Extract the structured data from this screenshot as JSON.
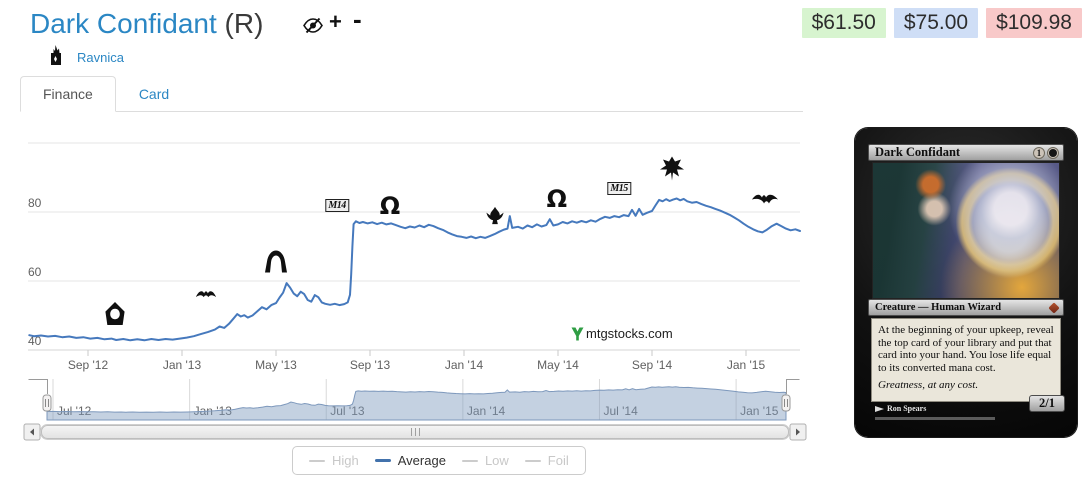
{
  "header": {
    "title": "Dark Confidant",
    "rarity": "(R)",
    "add_label": "+",
    "remove_label": "-",
    "set_name": "Ravnica",
    "prices": [
      {
        "kind": "low",
        "label": "$61.50",
        "bg": "#d7f4cf"
      },
      {
        "kind": "average",
        "label": "$75.00",
        "bg": "#cfdef6"
      },
      {
        "kind": "high",
        "label": "$109.98",
        "bg": "#f8c9c9"
      }
    ]
  },
  "tabs": [
    {
      "label": "Finance",
      "active": true
    },
    {
      "label": "Card",
      "active": false
    }
  ],
  "chart_data": {
    "type": "line",
    "title": "",
    "xlabel": "",
    "ylabel": "",
    "x_unit": "months since Jul 2012",
    "ylim": [
      40,
      100
    ],
    "grid": true,
    "yticks": [
      40,
      60,
      80,
      100
    ],
    "ytick_labels": [
      "40",
      "60",
      "80",
      ""
    ],
    "xticks": [
      {
        "pos": 2,
        "label": "Sep '12"
      },
      {
        "pos": 6,
        "label": "Jan '13"
      },
      {
        "pos": 10,
        "label": "May '13"
      },
      {
        "pos": 14,
        "label": "Sep '13"
      },
      {
        "pos": 18,
        "label": "Jan '14"
      },
      {
        "pos": 22,
        "label": "May '14"
      },
      {
        "pos": 26,
        "label": "Sep '14"
      },
      {
        "pos": 30,
        "label": "Jan '15"
      }
    ],
    "series": [
      {
        "name": "Average",
        "color": "#4679bd",
        "points": [
          [
            -0.5,
            44.3
          ],
          [
            -0.3,
            44.0
          ],
          [
            0,
            44.2
          ],
          [
            0.3,
            43.9
          ],
          [
            0.6,
            44.1
          ],
          [
            0.9,
            43.7
          ],
          [
            1.2,
            43.9
          ],
          [
            1.5,
            43.5
          ],
          [
            1.8,
            43.7
          ],
          [
            2.1,
            43.3
          ],
          [
            2.4,
            43.5
          ],
          [
            2.7,
            43.1
          ],
          [
            3.0,
            43.3
          ],
          [
            3.2,
            42.9
          ],
          [
            3.5,
            43.2
          ],
          [
            3.8,
            42.8
          ],
          [
            4.1,
            43.1
          ],
          [
            4.4,
            42.8
          ],
          [
            4.7,
            43.2
          ],
          [
            5.0,
            42.9
          ],
          [
            5.3,
            43.2
          ],
          [
            5.6,
            43.0
          ],
          [
            5.9,
            43.3
          ],
          [
            6.2,
            43.6
          ],
          [
            6.5,
            44.0
          ],
          [
            6.8,
            44.6
          ],
          [
            7.1,
            45.2
          ],
          [
            7.4,
            45.9
          ],
          [
            7.6,
            46.8
          ],
          [
            7.8,
            46.4
          ],
          [
            8.0,
            47.6
          ],
          [
            8.2,
            49.2
          ],
          [
            8.35,
            50.4
          ],
          [
            8.5,
            49.7
          ],
          [
            8.65,
            50.1
          ],
          [
            8.8,
            49.4
          ],
          [
            9.0,
            50.0
          ],
          [
            9.2,
            51.2
          ],
          [
            9.4,
            52.4
          ],
          [
            9.6,
            51.8
          ],
          [
            9.8,
            53.0
          ],
          [
            10.0,
            53.6
          ],
          [
            10.15,
            55.2
          ],
          [
            10.3,
            56.6
          ],
          [
            10.45,
            59.4
          ],
          [
            10.6,
            58.1
          ],
          [
            10.75,
            56.4
          ],
          [
            10.9,
            55.6
          ],
          [
            11.05,
            56.9
          ],
          [
            11.2,
            56.2
          ],
          [
            11.35,
            54.5
          ],
          [
            11.5,
            54.0
          ],
          [
            11.65,
            55.9
          ],
          [
            11.8,
            55.3
          ],
          [
            11.95,
            53.8
          ],
          [
            12.1,
            53.4
          ],
          [
            12.3,
            53.1
          ],
          [
            12.5,
            53.4
          ],
          [
            12.7,
            53.0
          ],
          [
            12.9,
            53.3
          ],
          [
            13.05,
            53.8
          ],
          [
            13.15,
            56.0
          ],
          [
            13.2,
            62.0
          ],
          [
            13.25,
            70.0
          ],
          [
            13.3,
            76.5
          ],
          [
            13.4,
            77.3
          ],
          [
            13.55,
            76.8
          ],
          [
            13.7,
            77.1
          ],
          [
            13.9,
            76.7
          ],
          [
            14.1,
            77.0
          ],
          [
            14.3,
            76.5
          ],
          [
            14.5,
            76.9
          ],
          [
            14.7,
            76.4
          ],
          [
            14.9,
            76.7
          ],
          [
            15.1,
            76.2
          ],
          [
            15.3,
            75.7
          ],
          [
            15.5,
            75.3
          ],
          [
            15.7,
            75.8
          ],
          [
            15.9,
            75.5
          ],
          [
            16.1,
            76.1
          ],
          [
            16.3,
            75.6
          ],
          [
            16.5,
            76.3
          ],
          [
            16.7,
            75.9
          ],
          [
            16.9,
            75.3
          ],
          [
            17.1,
            74.8
          ],
          [
            17.3,
            74.1
          ],
          [
            17.5,
            73.5
          ],
          [
            17.7,
            73.0
          ],
          [
            17.9,
            72.8
          ],
          [
            18.1,
            72.5
          ],
          [
            18.3,
            72.9
          ],
          [
            18.5,
            72.4
          ],
          [
            18.7,
            72.8
          ],
          [
            18.9,
            72.5
          ],
          [
            19.1,
            73.0
          ],
          [
            19.3,
            73.6
          ],
          [
            19.5,
            74.3
          ],
          [
            19.7,
            74.9
          ],
          [
            19.85,
            75.2
          ],
          [
            19.95,
            78.8
          ],
          [
            20.05,
            75.4
          ],
          [
            20.3,
            75.7
          ],
          [
            20.5,
            75.2
          ],
          [
            20.7,
            76.1
          ],
          [
            20.9,
            75.6
          ],
          [
            21.1,
            76.4
          ],
          [
            21.3,
            75.8
          ],
          [
            21.5,
            76.2
          ],
          [
            21.65,
            77.9
          ],
          [
            21.8,
            76.1
          ],
          [
            22.0,
            76.4
          ],
          [
            22.2,
            77.1
          ],
          [
            22.4,
            76.7
          ],
          [
            22.6,
            77.3
          ],
          [
            22.8,
            76.9
          ],
          [
            23.0,
            77.4
          ],
          [
            23.2,
            77.0
          ],
          [
            23.4,
            77.6
          ],
          [
            23.6,
            77.2
          ],
          [
            23.8,
            78.0
          ],
          [
            24.0,
            78.6
          ],
          [
            24.2,
            78.3
          ],
          [
            24.4,
            78.8
          ],
          [
            24.6,
            78.5
          ],
          [
            24.8,
            79.1
          ],
          [
            25.0,
            78.8
          ],
          [
            25.15,
            80.6
          ],
          [
            25.3,
            78.9
          ],
          [
            25.45,
            80.9
          ],
          [
            25.6,
            79.2
          ],
          [
            25.8,
            79.8
          ],
          [
            26.0,
            80.3
          ],
          [
            26.15,
            81.9
          ],
          [
            26.3,
            83.5
          ],
          [
            26.45,
            83.1
          ],
          [
            26.6,
            83.7
          ],
          [
            26.75,
            83.2
          ],
          [
            26.9,
            83.6
          ],
          [
            27.05,
            83.9
          ],
          [
            27.2,
            83.4
          ],
          [
            27.35,
            83.8
          ],
          [
            27.5,
            83.1
          ],
          [
            27.7,
            82.7
          ],
          [
            27.9,
            82.9
          ],
          [
            28.1,
            82.3
          ],
          [
            28.3,
            81.8
          ],
          [
            28.5,
            81.4
          ],
          [
            28.7,
            80.9
          ],
          [
            28.9,
            80.4
          ],
          [
            29.1,
            79.8
          ],
          [
            29.3,
            79.2
          ],
          [
            29.5,
            78.4
          ],
          [
            29.7,
            77.6
          ],
          [
            29.9,
            76.6
          ],
          [
            30.1,
            75.7
          ],
          [
            30.3,
            75.0
          ],
          [
            30.5,
            74.4
          ],
          [
            30.7,
            74.1
          ],
          [
            30.9,
            74.9
          ],
          [
            31.1,
            75.9
          ],
          [
            31.3,
            76.6
          ],
          [
            31.5,
            75.9
          ],
          [
            31.7,
            75.2
          ],
          [
            31.9,
            74.7
          ],
          [
            32.1,
            75.0
          ],
          [
            32.3,
            74.5
          ]
        ]
      }
    ],
    "legend": {
      "position": "bottom-center",
      "items": [
        {
          "label": "High",
          "enabled": false
        },
        {
          "label": "Average",
          "enabled": true
        },
        {
          "label": "Low",
          "enabled": false
        },
        {
          "label": "Foil",
          "enabled": false
        }
      ]
    },
    "annotations": [
      {
        "name": "return-to-ravnica-icon",
        "glyph": "gate",
        "label": "",
        "month": 3.15,
        "value": 49.9
      },
      {
        "name": "gatecrash-icon",
        "glyph": "bat",
        "label": "",
        "month": 7.0,
        "value": 55.9
      },
      {
        "name": "dragons-maze-icon",
        "glyph": "arch",
        "label": "",
        "month": 10.0,
        "value": 64.9
      },
      {
        "name": "m14-icon",
        "glyph": "boxtext",
        "label": "M14",
        "month": 12.6,
        "value": 82.3
      },
      {
        "name": "theros-icon",
        "glyph": "omega",
        "label": "Ω",
        "month": 14.85,
        "value": 81.7
      },
      {
        "name": "born-of-the-gods-icon",
        "glyph": "flame",
        "label": "",
        "month": 19.3,
        "value": 78.3
      },
      {
        "name": "journey-into-nyx-icon",
        "glyph": "omega",
        "label": "Ω",
        "month": 21.95,
        "value": 83.8
      },
      {
        "name": "m15-icon",
        "glyph": "boxtext",
        "label": "M15",
        "month": 24.6,
        "value": 87.2
      },
      {
        "name": "khans-of-tarkir-icon",
        "glyph": "crest",
        "label": "",
        "month": 26.85,
        "value": 91.9
      },
      {
        "name": "fate-reforged-icon",
        "glyph": "dragon",
        "label": "",
        "month": 30.8,
        "value": 83.2
      }
    ],
    "watermark": "mtgstocks.com",
    "navigator": {
      "ticks": [
        {
          "pos": 0,
          "label": "Jul '12"
        },
        {
          "pos": 6,
          "label": "Jan '13"
        },
        {
          "pos": 12,
          "label": "Jul '13"
        },
        {
          "pos": 18,
          "label": "Jan '14"
        },
        {
          "pos": 24,
          "label": "Jul '14"
        },
        {
          "pos": 30,
          "label": "Jan '15"
        }
      ]
    }
  },
  "card": {
    "name": "Dark Confidant",
    "mana_cost_generic": "1",
    "mana_cost_color": "B",
    "type_line": "Creature — Human Wizard",
    "rules_text": "At the beginning of your upkeep, reveal the top card of your library and put that card into your hand. You lose life equal to its converted mana cost.",
    "flavor_text": "Greatness, at any cost.",
    "artist": "Ron Spears",
    "power_toughness": "2/1"
  }
}
